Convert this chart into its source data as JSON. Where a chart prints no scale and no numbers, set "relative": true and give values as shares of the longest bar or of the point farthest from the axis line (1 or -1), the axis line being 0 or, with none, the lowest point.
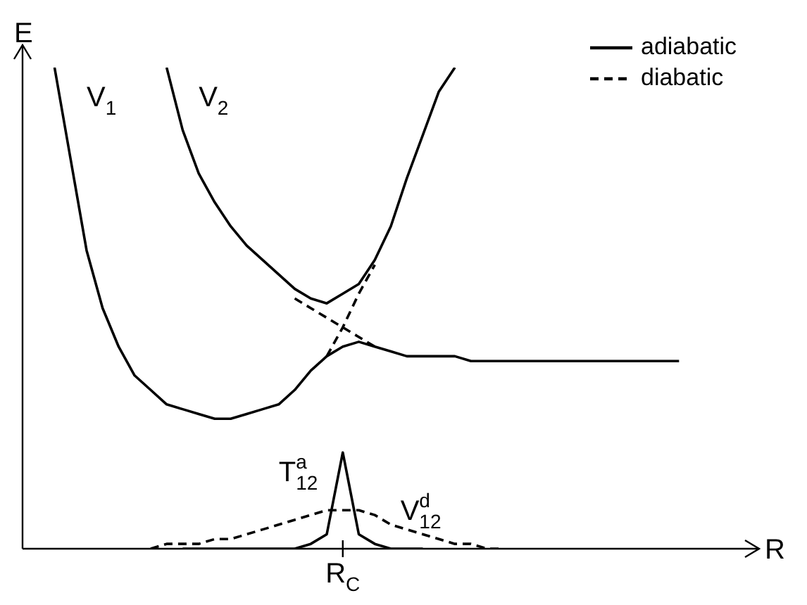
{
  "chart_data": {
    "type": "line",
    "relative": true,
    "xlabel": "R",
    "ylabel": "E",
    "legend": "top right",
    "marker": "none",
    "categories": [
      null,
      null,
      null,
      null,
      null,
      null,
      null,
      null,
      null,
      null,
      null,
      null,
      null,
      null,
      null,
      null,
      null,
      null,
      null,
      null,
      null,
      null,
      null,
      null,
      null,
      null,
      null,
      null,
      null,
      null,
      null,
      null,
      null,
      null,
      null,
      null,
      null,
      null,
      null,
      null,
      null,
      null,
      null,
      null,
      null,
      null,
      null
    ],
    "series": [
      {
        "name": "adiabatic",
        "color": "#000000",
        "line_style": "solid",
        "values": [
          null,
          null,
          1.0,
          0.81,
          0.62,
          0.5,
          0.42,
          0.36,
          0.33,
          0.3,
          0.29,
          0.28,
          0.27,
          0.27,
          0.28,
          0.29,
          0.3,
          0.33,
          0.37,
          0.4,
          0.42,
          0.43,
          0.42,
          0.41,
          0.4,
          0.4,
          0.4,
          0.4,
          0.39,
          0.39,
          0.39,
          0.39,
          0.39,
          0.39,
          0.39,
          0.39,
          0.39,
          0.39,
          0.39,
          0.39,
          0.39,
          0.39,
          null,
          null,
          null,
          null,
          null
        ]
      },
      {
        "color": "#000000",
        "line_style": "solid",
        "values": [
          null,
          null,
          null,
          null,
          null,
          null,
          null,
          null,
          null,
          1.0,
          0.87,
          0.78,
          0.72,
          0.67,
          0.63,
          0.6,
          0.57,
          0.54,
          0.52,
          0.51,
          0.53,
          0.55,
          0.6,
          0.67,
          0.77,
          0.86,
          0.95,
          1.0,
          null,
          null,
          null,
          null,
          null,
          null,
          null,
          null,
          null,
          null,
          null,
          null,
          null,
          null,
          null,
          null,
          null,
          null,
          null
        ]
      },
      {
        "name": "diabatic",
        "color": "#000000",
        "line_style": "dashed",
        "values": [
          null,
          null,
          null,
          null,
          null,
          null,
          null,
          null,
          null,
          null,
          null,
          null,
          null,
          null,
          null,
          null,
          null,
          0.52,
          0.5,
          0.48,
          0.46,
          0.44,
          0.42,
          null,
          null,
          null,
          null,
          null,
          null,
          null,
          null,
          null,
          null,
          null,
          null,
          null,
          null,
          null,
          null,
          null,
          null,
          null,
          null,
          null,
          null,
          null,
          null
        ]
      },
      {
        "color": "#000000",
        "line_style": "dashed",
        "values": [
          null,
          null,
          null,
          null,
          null,
          null,
          null,
          null,
          null,
          null,
          null,
          null,
          null,
          null,
          null,
          null,
          null,
          null,
          null,
          0.4,
          0.46,
          0.53,
          0.59,
          null,
          null,
          null,
          null,
          null,
          null,
          null,
          null,
          null,
          null,
          null,
          null,
          null,
          null,
          null,
          null,
          null,
          null,
          null,
          null,
          null,
          null,
          null,
          null
        ]
      },
      {
        "color": "#000000",
        "line_style": "solid",
        "values": [
          null,
          null,
          null,
          null,
          null,
          null,
          null,
          null,
          null,
          null,
          0,
          0,
          0,
          0,
          0,
          0,
          0,
          0,
          0.01,
          0.03,
          0.2,
          0.03,
          0.01,
          0,
          0,
          0,
          null,
          null,
          null,
          null,
          null,
          null,
          null,
          null,
          null,
          null,
          null,
          null,
          null,
          null,
          null,
          null,
          null,
          null,
          null,
          null,
          null
        ]
      },
      {
        "color": "#000000",
        "line_style": "dashed",
        "values": [
          null,
          null,
          null,
          null,
          null,
          null,
          null,
          null,
          0,
          0.01,
          0.01,
          0.01,
          0.02,
          0.02,
          0.03,
          0.04,
          0.05,
          0.06,
          0.07,
          0.08,
          0.08,
          0.08,
          0.07,
          0.05,
          0.04,
          0.03,
          0.02,
          0.01,
          0.01,
          0,
          0,
          null,
          null,
          null,
          null,
          null,
          null,
          null,
          null,
          null,
          null,
          null,
          null,
          null,
          null,
          null,
          null
        ]
      }
    ],
    "annotations": [
      "R$_{C}$",
      "V$_{1}$",
      "V$_{2}$",
      "T$^{a}$$_{12}$",
      "V$^{d}$$_{12}$"
    ]
  }
}
